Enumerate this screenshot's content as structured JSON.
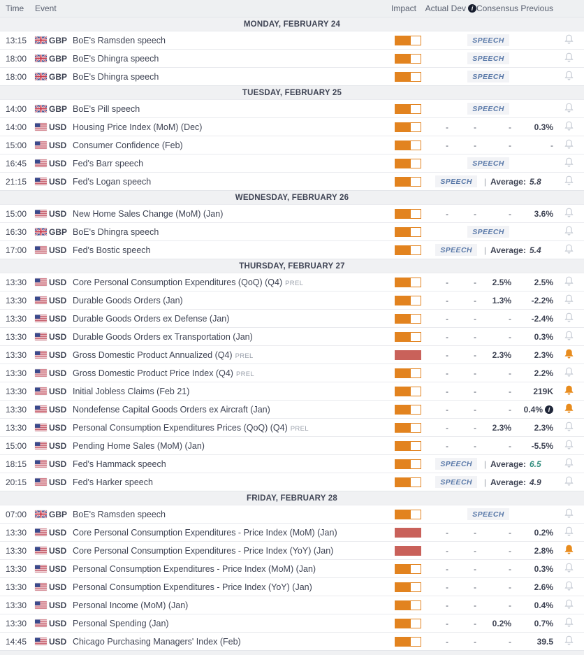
{
  "colors": {
    "impact_medium": "#e2831f",
    "impact_high": "#c9615a",
    "bell_active": "#e88c1e",
    "speech_text": "#5878a8",
    "average_teal": "#2f8c7c",
    "header_bg": "#eef0f2"
  },
  "labels": {
    "speech": "SPEECH",
    "average": "Average:",
    "prel": "PREL"
  },
  "header": {
    "time": "Time",
    "event": "Event",
    "impact": "Impact",
    "actual": "Actual",
    "dev": "Dev",
    "consensus": "Consensus",
    "previous": "Previous"
  },
  "sections": [
    {
      "date": "MONDAY, FEBRUARY 24",
      "rows": [
        {
          "time": "13:15",
          "currency": "GBP",
          "flag": "gb",
          "event": "BoE's Ramsden speech",
          "impact": "medium",
          "type": "speech",
          "bell": "inactive"
        },
        {
          "time": "18:00",
          "currency": "GBP",
          "flag": "gb",
          "event": "BoE's Dhingra speech",
          "impact": "medium",
          "type": "speech",
          "bell": "inactive"
        },
        {
          "time": "18:00",
          "currency": "GBP",
          "flag": "gb",
          "event": "BoE's Dhingra speech",
          "impact": "medium",
          "type": "speech",
          "bell": "inactive"
        }
      ]
    },
    {
      "date": "TUESDAY, FEBRUARY 25",
      "rows": [
        {
          "time": "14:00",
          "currency": "GBP",
          "flag": "gb",
          "event": "BoE's Pill speech",
          "impact": "medium",
          "type": "speech",
          "bell": "inactive"
        },
        {
          "time": "14:00",
          "currency": "USD",
          "flag": "us",
          "event": "Housing Price Index (MoM) (Dec)",
          "impact": "medium",
          "type": "data",
          "actual": "-",
          "dev": "-",
          "consensus": "-",
          "previous": "0.3%",
          "bell": "inactive"
        },
        {
          "time": "15:00",
          "currency": "USD",
          "flag": "us",
          "event": "Consumer Confidence (Feb)",
          "impact": "medium",
          "type": "data",
          "actual": "-",
          "dev": "-",
          "consensus": "-",
          "previous": "-",
          "bell": "inactive"
        },
        {
          "time": "16:45",
          "currency": "USD",
          "flag": "us",
          "event": "Fed's Barr speech",
          "impact": "medium",
          "type": "speech",
          "bell": "inactive"
        },
        {
          "time": "21:15",
          "currency": "USD",
          "flag": "us",
          "event": "Fed's Logan speech",
          "impact": "medium",
          "type": "speech_avg",
          "average": "5.8",
          "average_color": "dark",
          "bell": "inactive"
        }
      ]
    },
    {
      "date": "WEDNESDAY, FEBRUARY 26",
      "rows": [
        {
          "time": "15:00",
          "currency": "USD",
          "flag": "us",
          "event": "New Home Sales Change (MoM) (Jan)",
          "impact": "medium",
          "type": "data",
          "actual": "-",
          "dev": "-",
          "consensus": "-",
          "previous": "3.6%",
          "bell": "inactive"
        },
        {
          "time": "16:30",
          "currency": "GBP",
          "flag": "gb",
          "event": "BoE's Dhingra speech",
          "impact": "medium",
          "type": "speech",
          "bell": "inactive"
        },
        {
          "time": "17:00",
          "currency": "USD",
          "flag": "us",
          "event": "Fed's Bostic speech",
          "impact": "medium",
          "type": "speech_avg",
          "average": "5.4",
          "average_color": "dark",
          "bell": "inactive"
        }
      ]
    },
    {
      "date": "THURSDAY, FEBRUARY 27",
      "rows": [
        {
          "time": "13:30",
          "currency": "USD",
          "flag": "us",
          "event": "Core Personal Consumption Expenditures (QoQ) (Q4)",
          "prel": true,
          "impact": "medium",
          "type": "data",
          "actual": "-",
          "dev": "-",
          "consensus": "2.5%",
          "previous": "2.5%",
          "bell": "inactive"
        },
        {
          "time": "13:30",
          "currency": "USD",
          "flag": "us",
          "event": "Durable Goods Orders (Jan)",
          "impact": "medium",
          "type": "data",
          "actual": "-",
          "dev": "-",
          "consensus": "1.3%",
          "previous": "-2.2%",
          "bell": "inactive"
        },
        {
          "time": "13:30",
          "currency": "USD",
          "flag": "us",
          "event": "Durable Goods Orders ex Defense (Jan)",
          "impact": "medium",
          "type": "data",
          "actual": "-",
          "dev": "-",
          "consensus": "-",
          "previous": "-2.4%",
          "bell": "inactive"
        },
        {
          "time": "13:30",
          "currency": "USD",
          "flag": "us",
          "event": "Durable Goods Orders ex Transportation (Jan)",
          "impact": "medium",
          "type": "data",
          "actual": "-",
          "dev": "-",
          "consensus": "-",
          "previous": "0.3%",
          "bell": "inactive"
        },
        {
          "time": "13:30",
          "currency": "USD",
          "flag": "us",
          "event": "Gross Domestic Product Annualized (Q4)",
          "prel": true,
          "impact": "high",
          "type": "data",
          "actual": "-",
          "dev": "-",
          "consensus": "2.3%",
          "previous": "2.3%",
          "bell": "active"
        },
        {
          "time": "13:30",
          "currency": "USD",
          "flag": "us",
          "event": "Gross Domestic Product Price Index (Q4)",
          "prel": true,
          "impact": "medium",
          "type": "data",
          "actual": "-",
          "dev": "-",
          "consensus": "-",
          "previous": "2.2%",
          "bell": "inactive"
        },
        {
          "time": "13:30",
          "currency": "USD",
          "flag": "us",
          "event": "Initial Jobless Claims (Feb 21)",
          "impact": "medium",
          "type": "data",
          "actual": "-",
          "dev": "-",
          "consensus": "-",
          "previous": "219K",
          "bell": "active"
        },
        {
          "time": "13:30",
          "currency": "USD",
          "flag": "us",
          "event": "Nondefense Capital Goods Orders ex Aircraft (Jan)",
          "impact": "medium",
          "type": "data",
          "actual": "-",
          "dev": "-",
          "consensus": "-",
          "previous": "0.4%",
          "info": true,
          "bell": "active"
        },
        {
          "time": "13:30",
          "currency": "USD",
          "flag": "us",
          "event": "Personal Consumption Expenditures Prices (QoQ) (Q4)",
          "prel": true,
          "impact": "medium",
          "type": "data",
          "actual": "-",
          "dev": "-",
          "consensus": "2.3%",
          "previous": "2.3%",
          "bell": "inactive"
        },
        {
          "time": "15:00",
          "currency": "USD",
          "flag": "us",
          "event": "Pending Home Sales (MoM) (Jan)",
          "impact": "medium",
          "type": "data",
          "actual": "-",
          "dev": "-",
          "consensus": "-",
          "previous": "-5.5%",
          "bell": "inactive"
        },
        {
          "time": "18:15",
          "currency": "USD",
          "flag": "us",
          "event": "Fed's Hammack speech",
          "impact": "medium",
          "type": "speech_avg",
          "average": "6.5",
          "average_color": "teal",
          "bell": "inactive"
        },
        {
          "time": "20:15",
          "currency": "USD",
          "flag": "us",
          "event": "Fed's Harker speech",
          "impact": "medium",
          "type": "speech_avg",
          "average": "4.9",
          "average_color": "dark",
          "bell": "inactive"
        }
      ]
    },
    {
      "date": "FRIDAY, FEBRUARY 28",
      "rows": [
        {
          "time": "07:00",
          "currency": "GBP",
          "flag": "gb",
          "event": "BoE's Ramsden speech",
          "impact": "medium",
          "type": "speech",
          "bell": "inactive"
        },
        {
          "time": "13:30",
          "currency": "USD",
          "flag": "us",
          "event": "Core Personal Consumption Expenditures - Price Index (MoM) (Jan)",
          "impact": "high",
          "type": "data",
          "actual": "-",
          "dev": "-",
          "consensus": "-",
          "previous": "0.2%",
          "bell": "inactive"
        },
        {
          "time": "13:30",
          "currency": "USD",
          "flag": "us",
          "event": "Core Personal Consumption Expenditures - Price Index (YoY) (Jan)",
          "impact": "high",
          "type": "data",
          "actual": "-",
          "dev": "-",
          "consensus": "-",
          "previous": "2.8%",
          "bell": "active"
        },
        {
          "time": "13:30",
          "currency": "USD",
          "flag": "us",
          "event": "Personal Consumption Expenditures - Price Index (MoM) (Jan)",
          "impact": "medium",
          "type": "data",
          "actual": "-",
          "dev": "-",
          "consensus": "-",
          "previous": "0.3%",
          "bell": "inactive"
        },
        {
          "time": "13:30",
          "currency": "USD",
          "flag": "us",
          "event": "Personal Consumption Expenditures - Price Index (YoY) (Jan)",
          "impact": "medium",
          "type": "data",
          "actual": "-",
          "dev": "-",
          "consensus": "-",
          "previous": "2.6%",
          "bell": "inactive"
        },
        {
          "time": "13:30",
          "currency": "USD",
          "flag": "us",
          "event": "Personal Income (MoM) (Jan)",
          "impact": "medium",
          "type": "data",
          "actual": "-",
          "dev": "-",
          "consensus": "-",
          "previous": "0.4%",
          "bell": "inactive"
        },
        {
          "time": "13:30",
          "currency": "USD",
          "flag": "us",
          "event": "Personal Spending (Jan)",
          "impact": "medium",
          "type": "data",
          "actual": "-",
          "dev": "-",
          "consensus": "0.2%",
          "previous": "0.7%",
          "bell": "inactive"
        },
        {
          "time": "14:45",
          "currency": "USD",
          "flag": "us",
          "event": "Chicago Purchasing Managers' Index (Feb)",
          "impact": "medium",
          "type": "data",
          "actual": "-",
          "dev": "-",
          "consensus": "-",
          "previous": "39.5",
          "bell": "inactive"
        }
      ]
    }
  ]
}
